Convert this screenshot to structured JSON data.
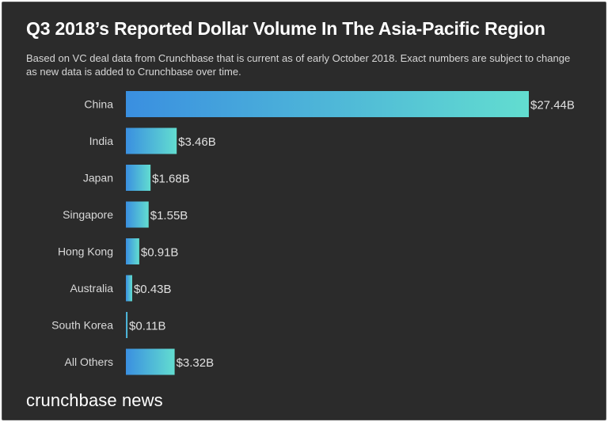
{
  "chart_data": {
    "type": "bar",
    "orientation": "horizontal",
    "title": "Q3 2018’s Reported Dollar Volume In The Asia-Pacific Region",
    "subtitle": "Based on VC deal data from Crunchbase that is current as of early October 2018. Exact numbers are subject to change as new data is added to Crunchbase over time.",
    "categories": [
      "China",
      "India",
      "Japan",
      "Singapore",
      "Hong Kong",
      "Australia",
      "South Korea",
      "All Others"
    ],
    "values": [
      27.44,
      3.46,
      1.68,
      1.55,
      0.91,
      0.43,
      0.11,
      3.32
    ],
    "value_labels": [
      "$27.44B",
      "$3.46B",
      "$1.68B",
      "$1.55B",
      "$0.91B",
      "$0.43B",
      "$0.11B",
      "$3.32B"
    ],
    "unit": "$B",
    "xlim": [
      0,
      27.44
    ],
    "grid": false,
    "legend": "none",
    "colors": {
      "bar_gradient_start": "#3a8fe0",
      "bar_gradient_end": "#62ddd0",
      "background": "#2b2b2b"
    }
  },
  "brand": "crunchbase news"
}
